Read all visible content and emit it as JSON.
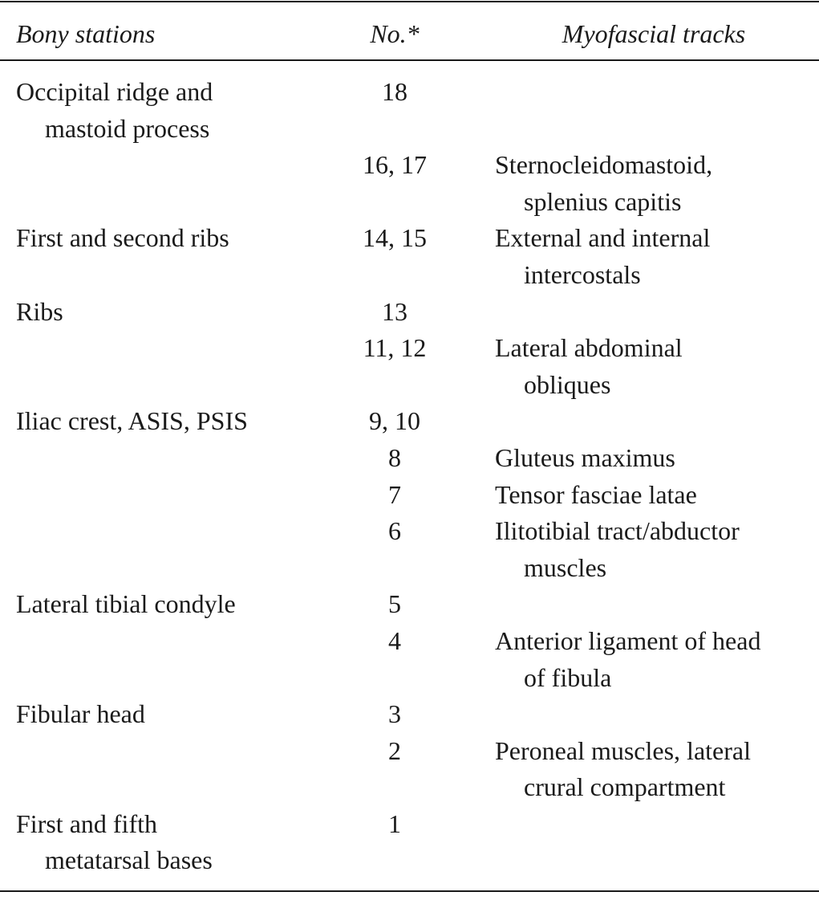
{
  "header": {
    "bony": "Bony stations",
    "no": "No.*",
    "tracks": "Myofascial tracks"
  },
  "rows": [
    {
      "bony": "Occipital ridge and\nmastoid process",
      "no": "18",
      "tracks": ""
    },
    {
      "bony": "",
      "no": "16, 17",
      "tracks": "Sternocleidomastoid,\nsplenius capitis"
    },
    {
      "bony": "First and second ribs",
      "no": "14, 15",
      "tracks": "External and internal\nintercostals"
    },
    {
      "bony": "Ribs",
      "no": "13",
      "tracks": ""
    },
    {
      "bony": "",
      "no": "11, 12",
      "tracks": "Lateral abdominal\nobliques"
    },
    {
      "bony": "Iliac crest, ASIS, PSIS",
      "no": "9, 10",
      "tracks": ""
    },
    {
      "bony": "",
      "no": "8",
      "tracks": "Gluteus maximus"
    },
    {
      "bony": "",
      "no": "7",
      "tracks": "Tensor fasciae latae"
    },
    {
      "bony": "",
      "no": "6",
      "tracks": "Ilitotibial tract/abductor\nmuscles"
    },
    {
      "bony": "Lateral tibial condyle",
      "no": "5",
      "tracks": ""
    },
    {
      "bony": "",
      "no": "4",
      "tracks": "Anterior ligament of head\nof fibula"
    },
    {
      "bony": "Fibular head",
      "no": "3",
      "tracks": ""
    },
    {
      "bony": "",
      "no": "2",
      "tracks": "Peroneal muscles, lateral\ncrural compartment"
    },
    {
      "bony": "First and fifth\nmetatarsal bases",
      "no": "1",
      "tracks": ""
    }
  ]
}
